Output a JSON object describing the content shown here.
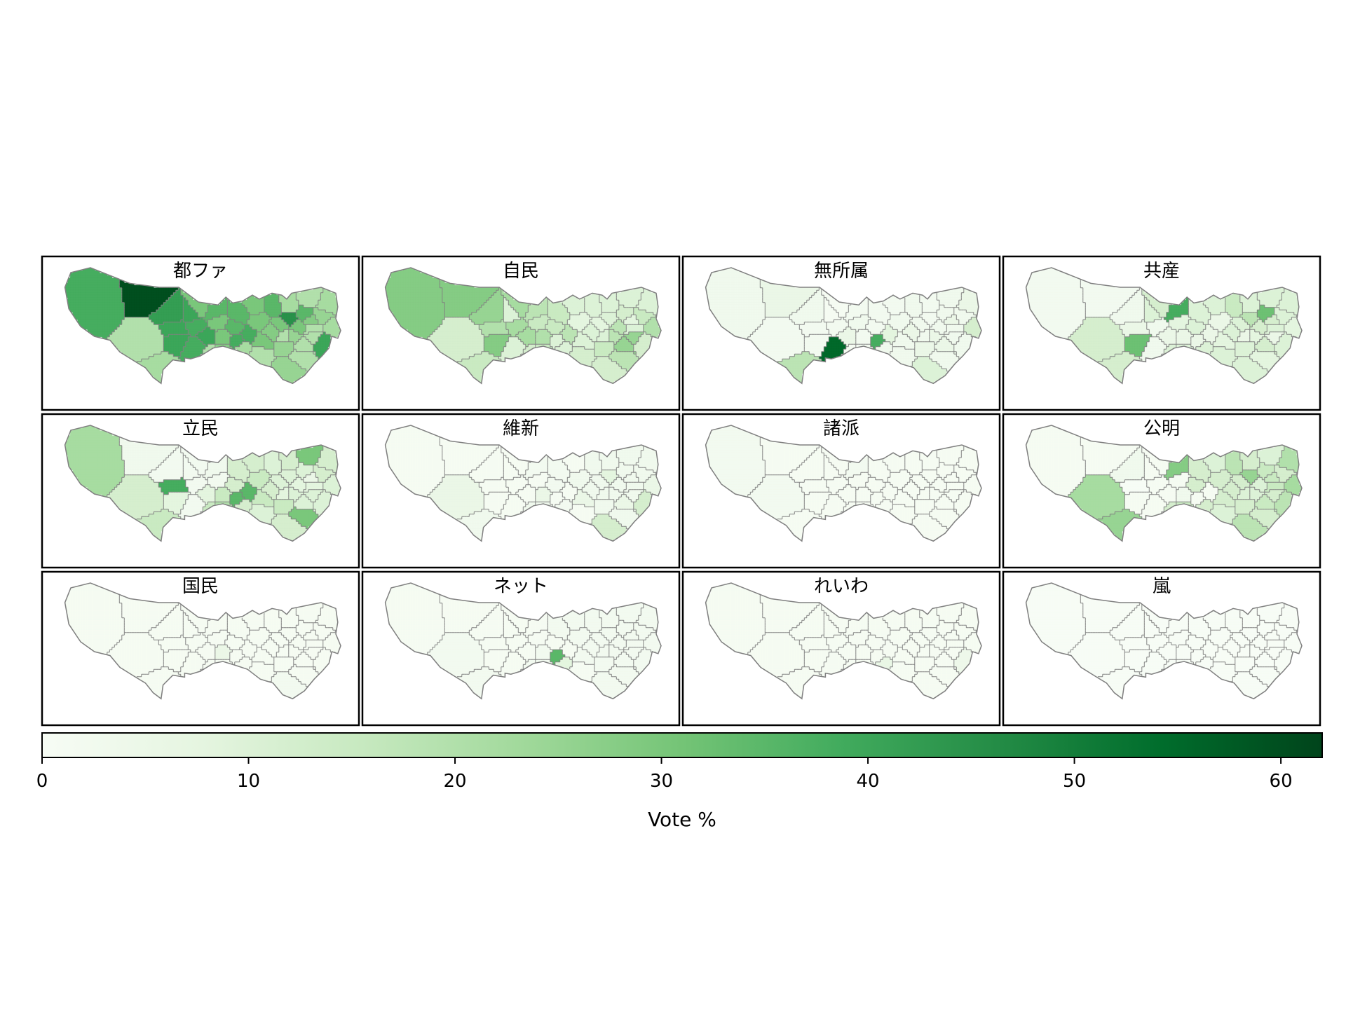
{
  "chart_data": {
    "type": "heatmap",
    "subtype": "choropleth-small-multiples",
    "colormap": "Greens",
    "color_stops": [
      "#f7fcf5",
      "#e5f5e0",
      "#c7e9c0",
      "#a1d99b",
      "#74c476",
      "#41ab5d",
      "#238b45",
      "#006d2c",
      "#00441b"
    ],
    "border_color": "#808080",
    "grid": {
      "rows": 3,
      "cols": 4
    },
    "region_order": [
      "west_tama",
      "okutama_north",
      "ome",
      "fussa",
      "akishima",
      "hachioji",
      "tachikawa",
      "hino",
      "machida",
      "higashiyamato",
      "kodaira",
      "higashimurayama",
      "kokubunji",
      "fuchu",
      "kunitachi",
      "tama",
      "inagi",
      "koganei",
      "musashino",
      "mitaka",
      "chofu",
      "komae",
      "nishitokyo",
      "kiyose",
      "nerima",
      "suginami",
      "setagaya",
      "nakano",
      "shibuya",
      "meguro",
      "ota",
      "shinagawa",
      "minato",
      "shinjuku",
      "toshima",
      "itabashi",
      "kita",
      "adachi",
      "arakawa",
      "bunkyo",
      "chiyoda",
      "chuo",
      "taito",
      "sumida",
      "koto",
      "katsushika",
      "edogawa"
    ],
    "panels": [
      {
        "title": "都ファ",
        "values": [
          38,
          60,
          42,
          40,
          38,
          20,
          40,
          40,
          22,
          30,
          35,
          30,
          40,
          30,
          38,
          28,
          20,
          35,
          38,
          38,
          22,
          20,
          35,
          30,
          30,
          28,
          30,
          30,
          20,
          25,
          25,
          20,
          20,
          25,
          45,
          35,
          22,
          20,
          35,
          30,
          20,
          20,
          28,
          25,
          40,
          22,
          22
        ]
      },
      {
        "title": "自民",
        "values": [
          28,
          28,
          25,
          10,
          22,
          12,
          20,
          28,
          15,
          22,
          18,
          15,
          22,
          20,
          10,
          15,
          12,
          15,
          10,
          18,
          10,
          12,
          15,
          10,
          8,
          10,
          10,
          8,
          10,
          15,
          12,
          18,
          25,
          18,
          10,
          10,
          10,
          10,
          12,
          18,
          10,
          25,
          8,
          15,
          12,
          10,
          20
        ]
      },
      {
        "title": "無所属",
        "values": [
          3,
          5,
          3,
          1,
          2,
          2,
          2,
          2,
          18,
          1,
          2,
          3,
          5,
          2,
          55,
          2,
          1,
          2,
          38,
          8,
          3,
          3,
          2,
          2,
          3,
          5,
          3,
          3,
          3,
          5,
          10,
          3,
          5,
          5,
          2,
          3,
          2,
          3,
          3,
          3,
          3,
          3,
          5,
          3,
          3,
          5,
          12
        ]
      },
      {
        "title": "共産",
        "values": [
          2,
          2,
          3,
          10,
          3,
          12,
          5,
          32,
          12,
          12,
          38,
          8,
          5,
          5,
          3,
          10,
          10,
          10,
          5,
          5,
          10,
          10,
          10,
          10,
          5,
          10,
          8,
          10,
          5,
          10,
          10,
          8,
          12,
          8,
          18,
          15,
          10,
          10,
          32,
          12,
          10,
          5,
          12,
          10,
          10,
          10,
          8
        ]
      },
      {
        "title": "立民",
        "values": [
          22,
          3,
          2,
          2,
          2,
          12,
          38,
          8,
          15,
          2,
          3,
          2,
          8,
          15,
          2,
          20,
          15,
          12,
          35,
          35,
          12,
          10,
          12,
          12,
          15,
          12,
          15,
          10,
          8,
          15,
          12,
          30,
          10,
          10,
          10,
          10,
          12,
          30,
          10,
          8,
          8,
          10,
          5,
          12,
          10,
          12,
          10
        ]
      },
      {
        "title": "維新",
        "values": [
          1,
          1,
          1,
          1,
          1,
          5,
          1,
          1,
          3,
          1,
          2,
          1,
          1,
          5,
          1,
          3,
          3,
          2,
          1,
          1,
          2,
          1,
          2,
          1,
          3,
          3,
          5,
          3,
          3,
          3,
          12,
          3,
          5,
          3,
          8,
          3,
          3,
          3,
          3,
          3,
          3,
          3,
          3,
          3,
          12,
          3,
          5
        ]
      },
      {
        "title": "諸派",
        "values": [
          2,
          1,
          1,
          1,
          1,
          2,
          1,
          1,
          1,
          1,
          2,
          1,
          1,
          1,
          1,
          1,
          1,
          1,
          1,
          1,
          1,
          1,
          1,
          1,
          1,
          1,
          1,
          1,
          1,
          1,
          1,
          1,
          1,
          1,
          1,
          1,
          1,
          1,
          1,
          1,
          1,
          1,
          1,
          1,
          1,
          1,
          1
        ]
      },
      {
        "title": "公明",
        "values": [
          1,
          1,
          3,
          1,
          1,
          22,
          0,
          1,
          25,
          1,
          28,
          1,
          1,
          3,
          1,
          15,
          12,
          12,
          1,
          1,
          12,
          10,
          12,
          10,
          12,
          12,
          12,
          12,
          10,
          12,
          18,
          12,
          15,
          10,
          25,
          18,
          12,
          10,
          15,
          10,
          15,
          12,
          15,
          12,
          18,
          20,
          22
        ]
      },
      {
        "title": "国民",
        "values": [
          1,
          1,
          1,
          1,
          1,
          1,
          1,
          1,
          1,
          1,
          1,
          1,
          1,
          5,
          1,
          1,
          1,
          1,
          1,
          1,
          1,
          1,
          1,
          1,
          1,
          1,
          1,
          1,
          1,
          1,
          2,
          1,
          1,
          1,
          1,
          1,
          1,
          1,
          1,
          1,
          1,
          1,
          1,
          1,
          1,
          1,
          1
        ]
      },
      {
        "title": "ネット",
        "values": [
          1,
          1,
          1,
          1,
          1,
          2,
          1,
          1,
          2,
          1,
          1,
          1,
          1,
          2,
          1,
          2,
          2,
          1,
          35,
          1,
          8,
          1,
          2,
          2,
          2,
          2,
          2,
          2,
          2,
          2,
          2,
          2,
          2,
          2,
          2,
          2,
          2,
          2,
          2,
          2,
          2,
          2,
          2,
          2,
          2,
          2,
          2
        ]
      },
      {
        "title": "れいわ",
        "values": [
          1,
          1,
          1,
          1,
          1,
          1,
          1,
          1,
          1,
          1,
          1,
          1,
          1,
          1,
          1,
          1,
          1,
          1,
          1,
          1,
          6,
          1,
          1,
          1,
          1,
          1,
          1,
          1,
          1,
          1,
          1,
          1,
          1,
          1,
          1,
          1,
          1,
          1,
          1,
          1,
          1,
          1,
          1,
          1,
          4,
          1,
          1
        ]
      },
      {
        "title": "嵐",
        "values": [
          0,
          0,
          0,
          0,
          0,
          0,
          0,
          0,
          0,
          0,
          0,
          0,
          0,
          0,
          0,
          0,
          0,
          0,
          0,
          0,
          0,
          0,
          0,
          0,
          0,
          0,
          0,
          0,
          0,
          0,
          0,
          0,
          0,
          0,
          0,
          0,
          0,
          0,
          0,
          0,
          0,
          0,
          0,
          0,
          0,
          0,
          0
        ]
      }
    ],
    "colorbar": {
      "label": "Vote %",
      "range": [
        0,
        62
      ],
      "ticks": [
        0,
        10,
        20,
        30,
        40,
        50,
        60
      ],
      "tick_labels": [
        "0",
        "10",
        "20",
        "30",
        "40",
        "50",
        "60"
      ],
      "orientation": "horizontal",
      "placement": "bottom"
    }
  }
}
